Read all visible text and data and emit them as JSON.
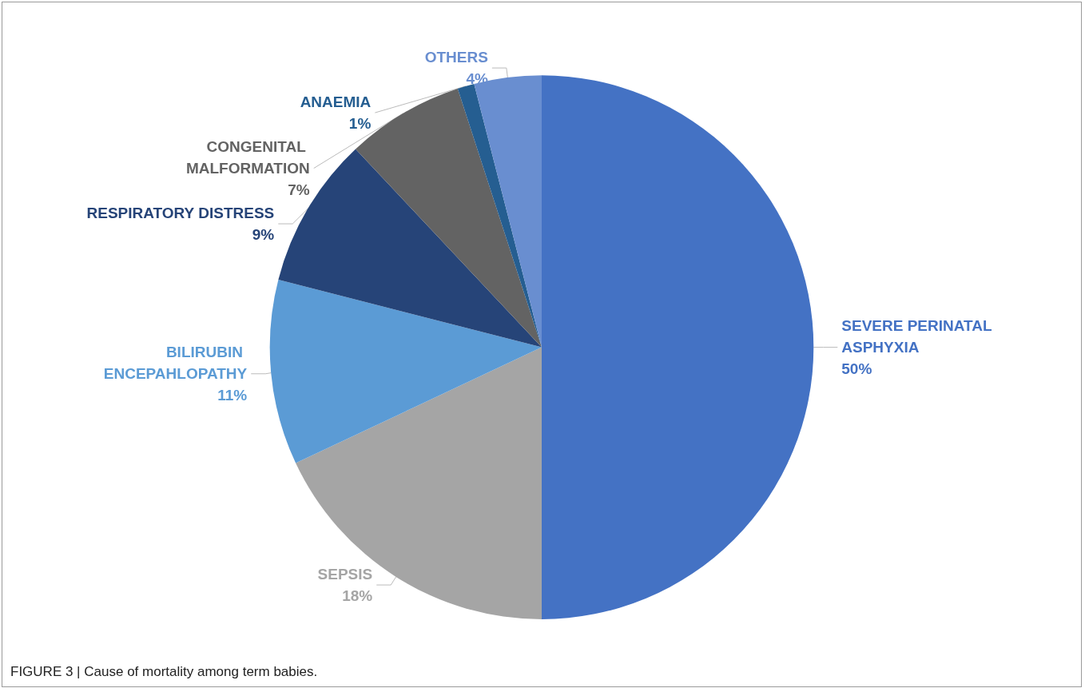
{
  "chart_data": {
    "type": "pie",
    "categories": [
      "SEVERE PERINATAL ASPHYXIA",
      "SEPSIS",
      "BILIRUBIN ENCEPAHLOPATHY",
      "RESPIRATORY DISTRESS",
      "CONGENITAL MALFORMATION",
      "ANAEMIA",
      "OTHERS"
    ],
    "values": [
      50,
      18,
      11,
      9,
      7,
      1,
      4
    ],
    "colors": [
      "#4472c4",
      "#a5a5a5",
      "#5b9bd5",
      "#264478",
      "#636363",
      "#255e91",
      "#698ed0"
    ],
    "value_labels": [
      "50%",
      "18%",
      "11%",
      "9%",
      "7%",
      "1%",
      "4%"
    ],
    "legend": false,
    "annotations": [
      "FIGURE 3 | Cause of mortality among term babies."
    ]
  }
}
